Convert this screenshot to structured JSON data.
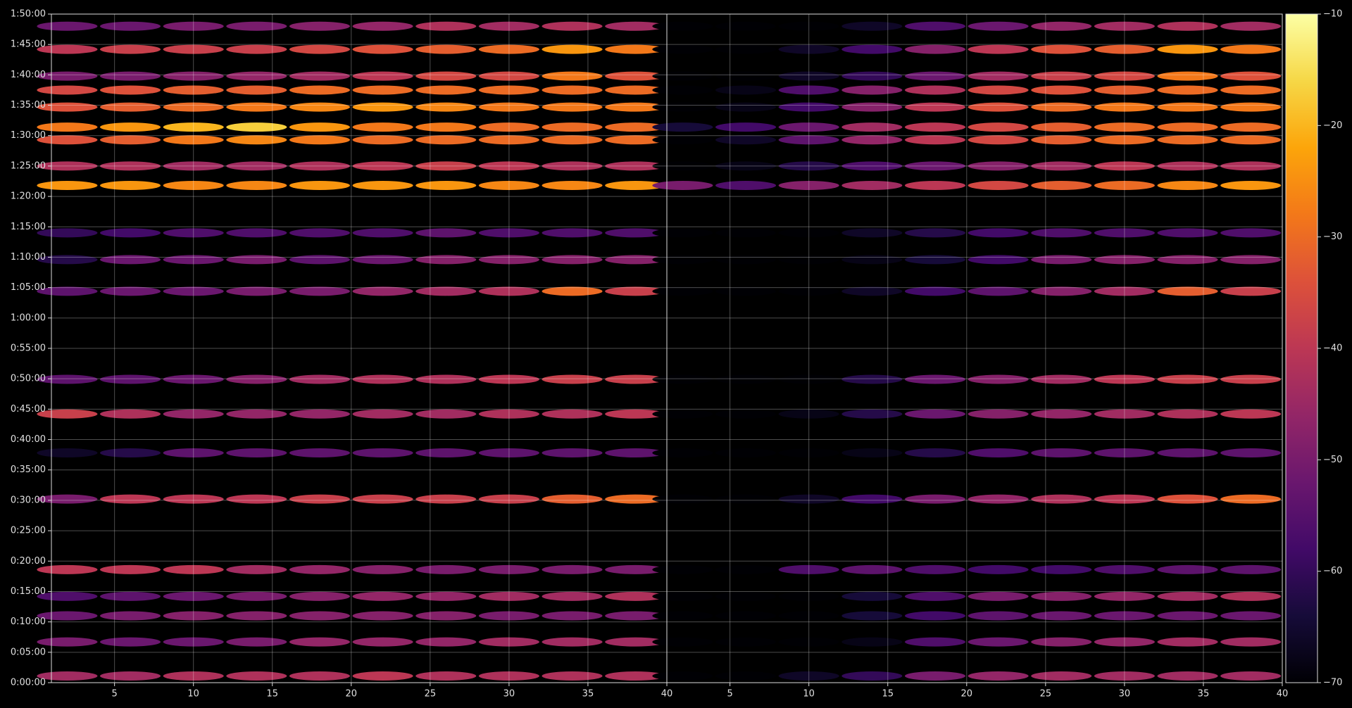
{
  "chart_data": {
    "type": "heatmap",
    "colormap": "inferno",
    "clim": [
      -70,
      -10
    ],
    "cticks": [
      {
        "value": -70,
        "label": "−70"
      },
      {
        "value": -60,
        "label": "−60"
      },
      {
        "value": -50,
        "label": "−50"
      },
      {
        "value": -40,
        "label": "−40"
      },
      {
        "value": -30,
        "label": "−30"
      },
      {
        "value": -20,
        "label": "−20"
      },
      {
        "value": -10,
        "label": "−10"
      }
    ],
    "grid": true,
    "xlim": [
      1,
      40
    ],
    "xticks": [
      5,
      10,
      15,
      20,
      25,
      30,
      35,
      40
    ],
    "ylim": [
      0,
      110
    ],
    "yticks": [
      {
        "value": 0,
        "label": "0:00:00"
      },
      {
        "value": 5,
        "label": "0:05:00"
      },
      {
        "value": 10,
        "label": "0:10:00"
      },
      {
        "value": 15,
        "label": "0:15:00"
      },
      {
        "value": 20,
        "label": "0:20:00"
      },
      {
        "value": 25,
        "label": "0:25:00"
      },
      {
        "value": 30,
        "label": "0:30:00"
      },
      {
        "value": 35,
        "label": "0:35:00"
      },
      {
        "value": 40,
        "label": "0:40:00"
      },
      {
        "value": 45,
        "label": "0:45:00"
      },
      {
        "value": 50,
        "label": "0:50:00"
      },
      {
        "value": 55,
        "label": "0:55:00"
      },
      {
        "value": 60,
        "label": "1:00:00"
      },
      {
        "value": 65,
        "label": "1:05:00"
      },
      {
        "value": 70,
        "label": "1:10:00"
      },
      {
        "value": 75,
        "label": "1:15:00"
      },
      {
        "value": 80,
        "label": "1:20:00"
      },
      {
        "value": 85,
        "label": "1:25:00"
      },
      {
        "value": 90,
        "label": "1:30:00"
      },
      {
        "value": 95,
        "label": "1:35:00"
      },
      {
        "value": 100,
        "label": "1:40:00"
      },
      {
        "value": 105,
        "label": "1:45:00"
      },
      {
        "value": 110,
        "label": "1:50:00"
      }
    ],
    "x": [
      2,
      6,
      10,
      14,
      18,
      22,
      26,
      30,
      34,
      38
    ],
    "y": [
      108,
      104.2,
      99.8,
      97.5,
      94.7,
      91.4,
      89.3,
      85,
      81.8,
      74,
      69.6,
      64.4,
      49.9,
      44.2,
      37.8,
      30.2,
      18.6,
      14.2,
      11,
      6.7,
      1.1
    ],
    "panels": [
      {
        "z": [
          [
            -52,
            -52,
            -50,
            -50,
            -48,
            -46,
            -42,
            -44,
            -42,
            -44
          ],
          [
            -40,
            -38,
            -38,
            -38,
            -36,
            -34,
            -32,
            -30,
            -24,
            -28
          ],
          [
            -50,
            -50,
            -48,
            -46,
            -44,
            -40,
            -36,
            -36,
            -28,
            -34
          ],
          [
            -36,
            -34,
            -32,
            -32,
            -30,
            -30,
            -30,
            -30,
            -30,
            -30
          ],
          [
            -34,
            -32,
            -30,
            -28,
            -26,
            -24,
            -26,
            -28,
            -28,
            -28
          ],
          [
            -28,
            -24,
            -20,
            -17,
            -24,
            -28,
            -28,
            -30,
            -30,
            -30
          ],
          [
            -34,
            -32,
            -28,
            -26,
            -28,
            -30,
            -30,
            -30,
            -30,
            -30
          ],
          [
            -42,
            -42,
            -44,
            -44,
            -42,
            -40,
            -38,
            -40,
            -42,
            -42
          ],
          [
            -24,
            -24,
            -26,
            -26,
            -24,
            -24,
            -24,
            -26,
            -26,
            -24
          ],
          [
            -60,
            -58,
            -56,
            -56,
            -56,
            -56,
            -54,
            -56,
            -56,
            -56
          ],
          [
            -62,
            -52,
            -52,
            -50,
            -54,
            -52,
            -48,
            -48,
            -48,
            -48
          ],
          [
            -54,
            -52,
            -52,
            -50,
            -50,
            -46,
            -44,
            -42,
            -30,
            -38
          ],
          [
            -54,
            -54,
            -52,
            -48,
            -44,
            -42,
            -42,
            -40,
            -38,
            -38
          ],
          [
            -38,
            -42,
            -46,
            -46,
            -46,
            -44,
            -44,
            -42,
            -42,
            -40
          ],
          [
            -66,
            -62,
            -54,
            -54,
            -54,
            -54,
            -54,
            -54,
            -54,
            -54
          ],
          [
            -50,
            -40,
            -40,
            -40,
            -38,
            -38,
            -38,
            -38,
            -32,
            -30
          ],
          [
            -40,
            -40,
            -40,
            -44,
            -46,
            -48,
            -50,
            -50,
            -50,
            -50
          ],
          [
            -56,
            -54,
            -52,
            -50,
            -48,
            -46,
            -46,
            -44,
            -44,
            -42
          ],
          [
            -52,
            -50,
            -48,
            -48,
            -48,
            -48,
            -48,
            -50,
            -50,
            -50
          ],
          [
            -50,
            -52,
            -52,
            -50,
            -46,
            -46,
            -46,
            -44,
            -44,
            -44
          ],
          [
            -44,
            -44,
            -42,
            -42,
            -42,
            -40,
            -42,
            -42,
            -42,
            -42
          ]
        ]
      },
      {
        "z": [
          [
            -70,
            -70,
            -70,
            -66,
            -56,
            -52,
            -46,
            -44,
            -42,
            -44
          ],
          [
            -70,
            -70,
            -66,
            -58,
            -48,
            -40,
            -34,
            -32,
            -24,
            -28
          ],
          [
            -70,
            -70,
            -66,
            -60,
            -52,
            -44,
            -38,
            -36,
            -28,
            -34
          ],
          [
            -70,
            -68,
            -56,
            -48,
            -42,
            -36,
            -34,
            -32,
            -30,
            -30
          ],
          [
            -70,
            -68,
            -58,
            -48,
            -40,
            -34,
            -30,
            -28,
            -28,
            -28
          ],
          [
            -64,
            -58,
            -52,
            -44,
            -40,
            -36,
            -32,
            -30,
            -30,
            -30
          ],
          [
            -70,
            -66,
            -54,
            -46,
            -40,
            -36,
            -32,
            -30,
            -30,
            -30
          ],
          [
            -70,
            -68,
            -62,
            -56,
            -52,
            -48,
            -44,
            -40,
            -42,
            -42
          ],
          [
            -50,
            -56,
            -48,
            -44,
            -40,
            -36,
            -32,
            -30,
            -26,
            -24
          ],
          [
            -70,
            -70,
            -70,
            -66,
            -62,
            -58,
            -56,
            -56,
            -56,
            -56
          ],
          [
            -70,
            -70,
            -70,
            -68,
            -64,
            -58,
            -50,
            -48,
            -48,
            -48
          ],
          [
            -70,
            -70,
            -70,
            -66,
            -58,
            -54,
            -48,
            -44,
            -32,
            -38
          ],
          [
            -70,
            -70,
            -70,
            -62,
            -52,
            -48,
            -44,
            -40,
            -38,
            -38
          ],
          [
            -70,
            -70,
            -68,
            -62,
            -52,
            -48,
            -46,
            -44,
            -42,
            -40
          ],
          [
            -70,
            -70,
            -70,
            -68,
            -62,
            -56,
            -54,
            -54,
            -54,
            -54
          ],
          [
            -70,
            -70,
            -66,
            -58,
            -50,
            -46,
            -42,
            -40,
            -34,
            -30
          ],
          [
            -70,
            -70,
            -56,
            -54,
            -56,
            -58,
            -58,
            -56,
            -54,
            -54
          ],
          [
            -70,
            -70,
            -70,
            -64,
            -56,
            -50,
            -48,
            -46,
            -44,
            -42
          ],
          [
            -70,
            -70,
            -70,
            -64,
            -58,
            -54,
            -52,
            -52,
            -52,
            -52
          ],
          [
            -70,
            -70,
            -70,
            -68,
            -56,
            -52,
            -48,
            -46,
            -44,
            -44
          ],
          [
            -70,
            -70,
            -66,
            -60,
            -50,
            -46,
            -44,
            -44,
            -44,
            -44
          ]
        ]
      }
    ]
  }
}
